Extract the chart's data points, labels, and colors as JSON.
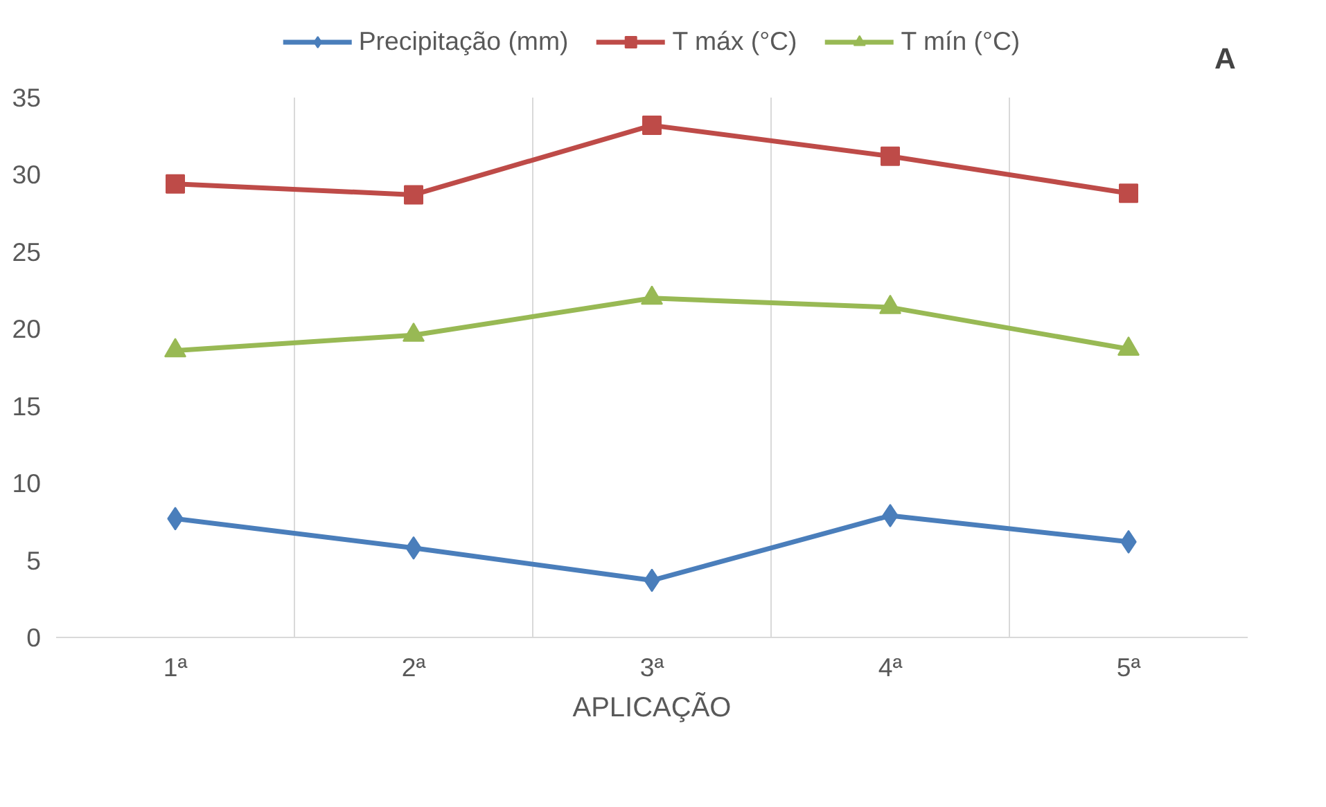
{
  "chart_data": {
    "type": "line",
    "xlabel": "APLICAÇÃO",
    "categories": [
      "1ª",
      "2ª",
      "3ª",
      "4ª",
      "5ª"
    ],
    "series": [
      {
        "name": "Precipitação (mm)",
        "color": "#4a7ebb",
        "marker": "diamond",
        "values": [
          7.7,
          5.8,
          3.7,
          7.9,
          6.2
        ]
      },
      {
        "name": "T máx (°C)",
        "color": "#be4b48",
        "marker": "square",
        "values": [
          29.4,
          28.7,
          33.2,
          31.2,
          28.8
        ]
      },
      {
        "name": "T mín (°C)",
        "color": "#98b954",
        "marker": "triangle",
        "values": [
          18.6,
          19.6,
          22.0,
          21.4,
          18.7
        ]
      }
    ],
    "ylim": [
      0,
      35
    ],
    "yticks": [
      0,
      5,
      10,
      15,
      20,
      25,
      30,
      35
    ],
    "grid": "x",
    "legend": "top",
    "line_style": "solid",
    "annotations": [
      "A"
    ]
  }
}
